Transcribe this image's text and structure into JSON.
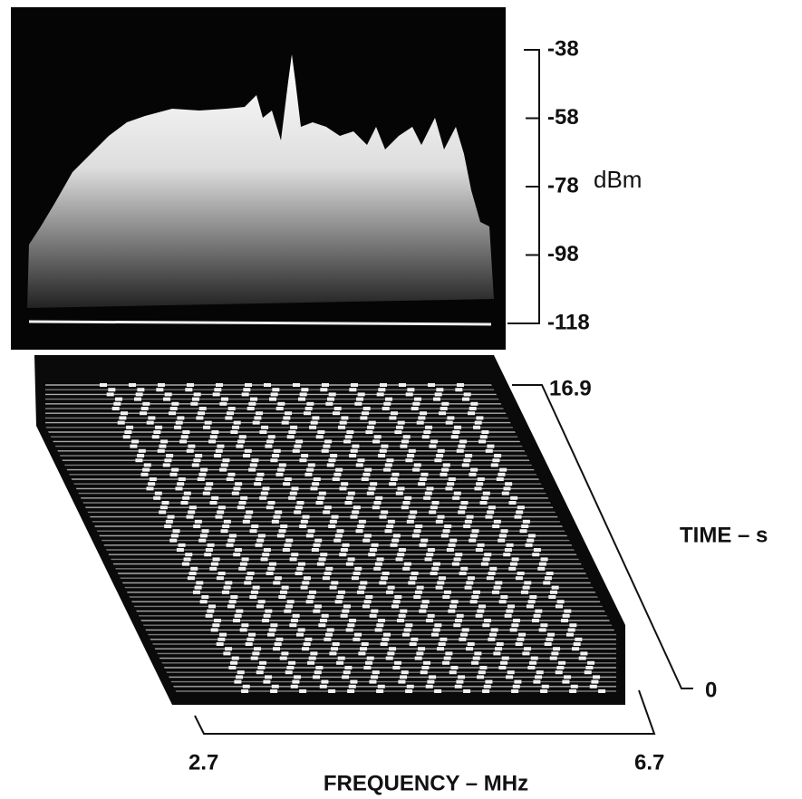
{
  "spectrum_panel": {
    "axis_label": "dBm",
    "ticks": [
      -38,
      -58,
      -78,
      -98,
      -118
    ]
  },
  "waterfall_panel": {
    "time_axis": {
      "label": "TIME – s",
      "top_tick": "16.9",
      "bottom_tick": "0"
    },
    "frequency_axis": {
      "label": "FREQUENCY – MHz",
      "left_tick": "2.7",
      "right_tick": "6.7"
    }
  }
}
